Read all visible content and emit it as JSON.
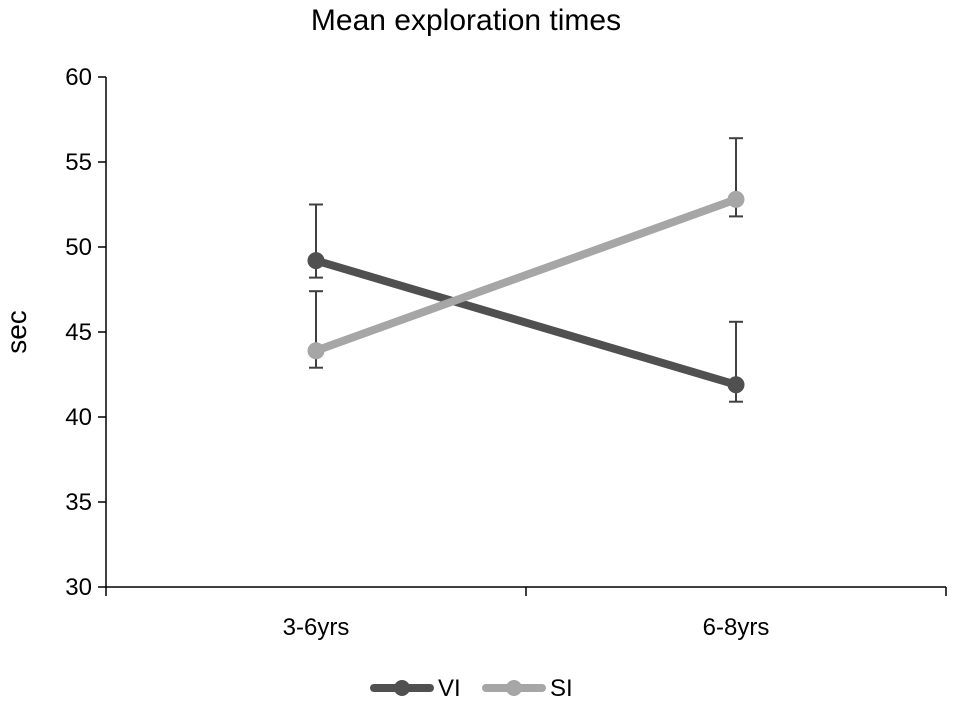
{
  "chart_data": {
    "type": "line",
    "title": "Mean exploration times",
    "xlabel": "",
    "ylabel": "sec",
    "categories": [
      "3-6yrs",
      "6-8yrs"
    ],
    "ylim": [
      30,
      60
    ],
    "yticks": [
      30,
      35,
      40,
      45,
      50,
      55,
      60
    ],
    "grid": false,
    "legend": "bottom",
    "series": [
      {
        "name": "VI",
        "color": "#505050",
        "values": [
          49.2,
          41.9
        ],
        "error_upper": [
          52.5,
          45.6
        ],
        "error_lower": [
          48.2,
          40.9
        ]
      },
      {
        "name": "SI",
        "color": "#a6a6a6",
        "values": [
          43.9,
          52.8
        ],
        "error_upper": [
          47.4,
          56.4
        ],
        "error_lower": [
          42.9,
          51.8
        ]
      }
    ]
  }
}
